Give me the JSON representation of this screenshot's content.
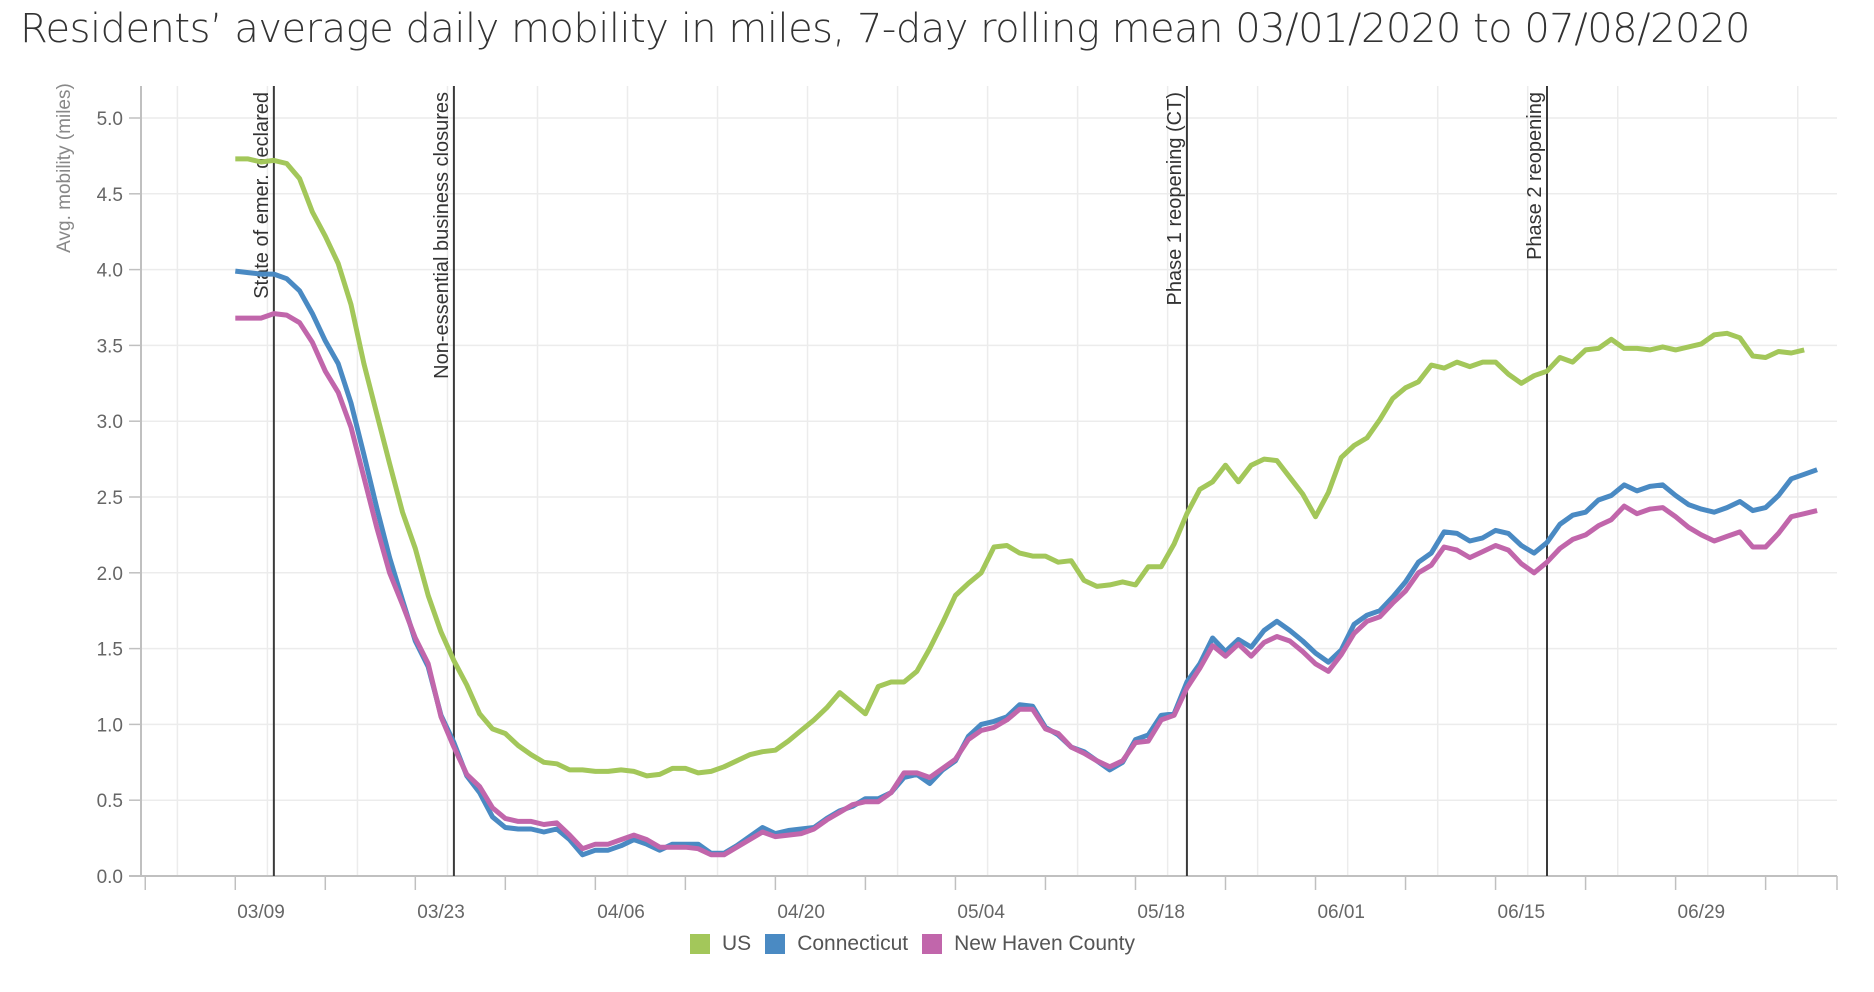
{
  "chart_data": {
    "type": "line",
    "title": "Residents’ average daily mobility in miles, 7-day rolling mean 03/01/2020 to 07/08/2020",
    "xlabel": "",
    "ylabel": "Avg. mobility (miles)",
    "ylim": [
      0,
      5.2
    ],
    "yticks": [
      "0.0",
      "0.5",
      "1.0",
      "1.5",
      "2.0",
      "2.5",
      "3.0",
      "3.5",
      "4.0",
      "4.5",
      "5.0"
    ],
    "x_start_date": "2020-03-07",
    "x_range_days": [
      -9,
      122
    ],
    "x_tick_labels": [
      "03/09",
      "03/23",
      "04/06",
      "04/20",
      "05/04",
      "05/18",
      "06/01",
      "06/15",
      "06/29"
    ],
    "grid": true,
    "legend_position": "bottom-center",
    "events": [
      {
        "date": "03/10",
        "label": "State of emer. declared"
      },
      {
        "date": "03/24",
        "label": "Non-essential business closures"
      },
      {
        "date": "05/20",
        "label": "Phase 1 reopening (CT)"
      },
      {
        "date": "06/17",
        "label": "Phase 2 reopening"
      }
    ],
    "series": [
      {
        "name": "US",
        "color": "#a3c75a",
        "values": [
          4.73,
          4.73,
          4.71,
          4.72,
          4.7,
          4.6,
          4.38,
          4.22,
          4.04,
          3.77,
          3.38,
          3.05,
          2.72,
          2.4,
          2.16,
          1.85,
          1.61,
          1.42,
          1.26,
          1.07,
          0.97,
          0.94,
          0.86,
          0.8,
          0.75,
          0.74,
          0.7,
          0.7,
          0.69,
          0.69,
          0.7,
          0.69,
          0.66,
          0.67,
          0.71,
          0.71,
          0.68,
          0.69,
          0.72,
          0.76,
          0.8,
          0.82,
          0.83,
          0.89,
          0.96,
          1.03,
          1.11,
          1.21,
          1.14,
          1.07,
          1.25,
          1.28,
          1.28,
          1.35,
          1.5,
          1.67,
          1.85,
          1.93,
          2.0,
          2.17,
          2.18,
          2.13,
          2.11,
          2.11,
          2.07,
          2.08,
          1.95,
          1.91,
          1.92,
          1.94,
          1.92,
          2.04,
          2.04,
          2.19,
          2.39,
          2.55,
          2.6,
          2.71,
          2.6,
          2.71,
          2.75,
          2.74,
          2.63,
          2.52,
          2.37,
          2.53,
          2.76,
          2.84,
          2.89,
          3.01,
          3.15,
          3.22,
          3.26,
          3.37,
          3.35,
          3.39,
          3.36,
          3.39,
          3.39,
          3.31,
          3.25,
          3.3,
          3.33,
          3.42,
          3.39,
          3.47,
          3.48,
          3.54,
          3.48,
          3.48,
          3.47,
          3.49,
          3.47,
          3.49,
          3.51,
          3.57,
          3.58,
          3.55,
          3.43,
          3.42,
          3.46,
          3.45,
          3.47
        ]
      },
      {
        "name": "Connecticut",
        "color": "#4a8ac3",
        "values": [
          3.99,
          3.98,
          3.97,
          3.97,
          3.94,
          3.86,
          3.71,
          3.53,
          3.38,
          3.12,
          2.78,
          2.43,
          2.1,
          1.82,
          1.55,
          1.38,
          1.06,
          0.88,
          0.66,
          0.55,
          0.39,
          0.32,
          0.31,
          0.31,
          0.29,
          0.31,
          0.24,
          0.14,
          0.17,
          0.17,
          0.2,
          0.24,
          0.21,
          0.17,
          0.21,
          0.21,
          0.21,
          0.15,
          0.15,
          0.2,
          0.26,
          0.32,
          0.28,
          0.3,
          0.31,
          0.32,
          0.38,
          0.43,
          0.46,
          0.51,
          0.51,
          0.55,
          0.65,
          0.67,
          0.61,
          0.7,
          0.76,
          0.92,
          1.0,
          1.02,
          1.05,
          1.13,
          1.12,
          0.98,
          0.93,
          0.85,
          0.82,
          0.76,
          0.7,
          0.75,
          0.9,
          0.93,
          1.06,
          1.07,
          1.28,
          1.4,
          1.57,
          1.48,
          1.56,
          1.51,
          1.62,
          1.68,
          1.62,
          1.55,
          1.47,
          1.41,
          1.49,
          1.66,
          1.72,
          1.75,
          1.84,
          1.94,
          2.07,
          2.13,
          2.27,
          2.26,
          2.21,
          2.23,
          2.28,
          2.26,
          2.18,
          2.13,
          2.2,
          2.32,
          2.38,
          2.4,
          2.48,
          2.51,
          2.58,
          2.54,
          2.57,
          2.58,
          2.51,
          2.45,
          2.42,
          2.4,
          2.43,
          2.47,
          2.41,
          2.43,
          2.51,
          2.62,
          2.65,
          2.68
        ]
      },
      {
        "name": "New Haven County",
        "color": "#c166ab",
        "values": [
          3.68,
          3.68,
          3.68,
          3.71,
          3.7,
          3.65,
          3.52,
          3.33,
          3.19,
          2.96,
          2.63,
          2.3,
          2.0,
          1.79,
          1.57,
          1.4,
          1.05,
          0.85,
          0.67,
          0.59,
          0.45,
          0.38,
          0.36,
          0.36,
          0.34,
          0.35,
          0.27,
          0.18,
          0.21,
          0.21,
          0.24,
          0.27,
          0.24,
          0.19,
          0.19,
          0.19,
          0.18,
          0.14,
          0.14,
          0.19,
          0.24,
          0.29,
          0.26,
          0.27,
          0.28,
          0.31,
          0.37,
          0.42,
          0.47,
          0.49,
          0.49,
          0.55,
          0.68,
          0.68,
          0.65,
          0.71,
          0.77,
          0.9,
          0.96,
          0.98,
          1.03,
          1.1,
          1.1,
          0.97,
          0.94,
          0.85,
          0.81,
          0.76,
          0.72,
          0.76,
          0.88,
          0.89,
          1.03,
          1.06,
          1.24,
          1.37,
          1.52,
          1.45,
          1.53,
          1.45,
          1.54,
          1.58,
          1.55,
          1.48,
          1.4,
          1.35,
          1.46,
          1.6,
          1.68,
          1.71,
          1.8,
          1.88,
          2.0,
          2.05,
          2.17,
          2.15,
          2.1,
          2.14,
          2.18,
          2.15,
          2.06,
          2.0,
          2.07,
          2.16,
          2.22,
          2.25,
          2.31,
          2.35,
          2.44,
          2.39,
          2.42,
          2.43,
          2.37,
          2.3,
          2.25,
          2.21,
          2.24,
          2.27,
          2.17,
          2.17,
          2.26,
          2.37,
          2.39,
          2.41
        ]
      }
    ]
  },
  "legend": {
    "items": [
      {
        "label": "US",
        "color": "#a3c75a"
      },
      {
        "label": "Connecticut",
        "color": "#4a8ac3"
      },
      {
        "label": "New Haven County",
        "color": "#c166ab"
      }
    ]
  }
}
